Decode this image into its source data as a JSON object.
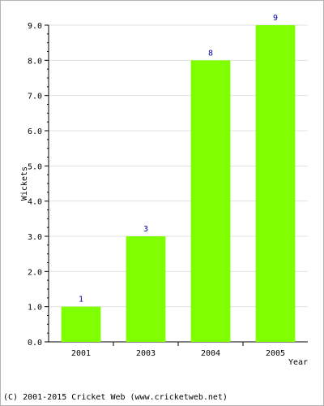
{
  "chart_data": {
    "type": "bar",
    "categories": [
      "2001",
      "2003",
      "2004",
      "2005"
    ],
    "values": [
      1,
      3,
      8,
      9
    ],
    "data_labels": [
      "1",
      "3",
      "8",
      "9"
    ],
    "title": "",
    "xlabel": "Year",
    "ylabel": "Wickets",
    "ylim": [
      0,
      9
    ],
    "yticks": [
      "0.0",
      "1.0",
      "2.0",
      "3.0",
      "4.0",
      "5.0",
      "6.0",
      "7.0",
      "8.0",
      "9.0"
    ],
    "grid": true,
    "bar_color": "#80ff00",
    "label_color": "#0000a0",
    "legend": "none"
  },
  "footer": {
    "copyright": "(C) 2001-2015 Cricket Web (www.cricketweb.net)"
  }
}
